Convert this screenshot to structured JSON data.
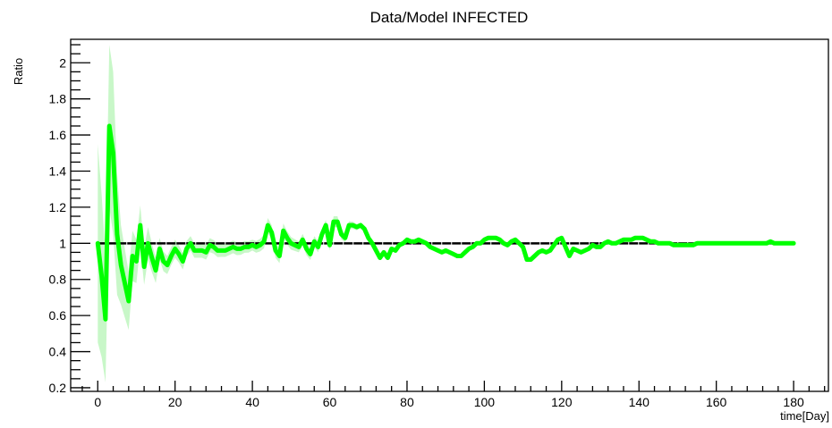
{
  "chart_data": {
    "type": "line",
    "title": "Data/Model INFECTED",
    "xlabel": "time[Day]",
    "ylabel": "Ratio",
    "xlim": [
      -7,
      189
    ],
    "ylim": [
      0.18,
      2.13
    ],
    "xticks": [
      0,
      20,
      40,
      60,
      80,
      100,
      120,
      140,
      160,
      180
    ],
    "yticks": [
      0.2,
      0.4,
      0.6,
      0.8,
      1,
      1.2,
      1.4,
      1.6,
      1.8,
      2
    ],
    "xtick_labels": [
      "0",
      "20",
      "40",
      "60",
      "80",
      "100",
      "120",
      "140",
      "160",
      "180"
    ],
    "ytick_labels": [
      "0.2",
      "0.4",
      "0.6",
      "0.8",
      "1",
      "1.2",
      "1.4",
      "1.6",
      "1.8",
      "2"
    ],
    "reference_line": {
      "y": 1,
      "x_range": [
        0,
        180
      ],
      "color": "#000000",
      "style": "dashed"
    },
    "grid": false,
    "colors": {
      "line": "#00ff00",
      "band": "#c8f7c8",
      "frame": "#000000"
    },
    "series": [
      {
        "x": [
          0,
          1,
          2,
          3,
          4,
          5,
          6,
          7,
          8,
          9,
          10,
          11,
          12,
          13,
          14,
          15,
          16,
          17,
          18,
          19,
          20,
          21,
          22,
          23,
          24,
          25,
          26,
          27,
          28,
          29,
          30,
          31,
          32,
          33,
          34,
          35,
          36,
          37,
          38,
          39,
          40,
          41,
          42,
          43,
          44,
          45,
          46,
          47,
          48,
          49,
          50,
          51,
          52,
          53,
          54,
          55,
          56,
          57,
          58,
          59,
          60,
          61,
          62,
          63,
          64,
          65,
          66,
          67,
          68,
          69,
          70,
          71,
          72,
          73,
          74,
          75,
          76,
          77,
          78,
          79,
          80,
          81,
          82,
          83,
          84,
          85,
          86,
          87,
          88,
          89,
          90,
          91,
          92,
          93,
          94,
          95,
          96,
          97,
          98,
          99,
          100,
          101,
          102,
          103,
          104,
          105,
          106,
          107,
          108,
          109,
          110,
          111,
          112,
          113,
          114,
          115,
          116,
          117,
          118,
          119,
          120,
          121,
          122,
          123,
          124,
          125,
          126,
          127,
          128,
          129,
          130,
          131,
          132,
          133,
          134,
          135,
          136,
          137,
          138,
          139,
          140,
          141,
          142,
          143,
          144,
          145,
          146,
          147,
          148,
          149,
          150,
          151,
          152,
          153,
          154,
          155,
          156,
          157,
          158,
          159,
          160,
          161,
          162,
          163,
          164,
          165,
          166,
          167,
          168,
          169,
          170,
          171,
          172,
          173,
          174,
          175,
          176,
          177,
          178,
          179,
          180
        ],
        "y": [
          1.0,
          0.82,
          0.58,
          1.65,
          1.5,
          1.05,
          0.88,
          0.78,
          0.68,
          0.93,
          0.9,
          1.1,
          0.87,
          1.0,
          0.92,
          0.85,
          0.97,
          0.9,
          0.88,
          0.93,
          0.97,
          0.94,
          0.9,
          0.97,
          1.0,
          0.96,
          0.96,
          0.96,
          0.95,
          0.99,
          0.98,
          0.96,
          0.96,
          0.96,
          0.97,
          0.98,
          0.97,
          0.97,
          0.98,
          0.98,
          0.99,
          0.98,
          0.99,
          1.01,
          1.1,
          1.06,
          0.96,
          0.93,
          1.07,
          1.03,
          1.0,
          0.99,
          0.98,
          1.02,
          0.97,
          0.94,
          1.01,
          0.98,
          1.05,
          1.1,
          0.99,
          1.12,
          1.12,
          1.05,
          1.03,
          1.1,
          1.1,
          1.09,
          1.1,
          1.08,
          1.03,
          1.0,
          0.96,
          0.92,
          0.95,
          0.92,
          0.97,
          0.96,
          0.99,
          1.0,
          1.02,
          1.01,
          1.01,
          1.02,
          1.01,
          1.0,
          0.98,
          0.97,
          0.96,
          0.95,
          0.96,
          0.95,
          0.94,
          0.93,
          0.93,
          0.95,
          0.97,
          0.98,
          1.0,
          1.0,
          1.02,
          1.03,
          1.03,
          1.03,
          1.02,
          1.0,
          0.99,
          1.01,
          1.02,
          1.0,
          0.98,
          0.91,
          0.91,
          0.93,
          0.95,
          0.96,
          0.95,
          0.96,
          0.99,
          1.02,
          1.03,
          0.98,
          0.93,
          0.97,
          0.96,
          0.95,
          0.96,
          0.97,
          0.99,
          0.98,
          0.98,
          1.0,
          1.01,
          1.0,
          1.0,
          1.01,
          1.02,
          1.02,
          1.02,
          1.03,
          1.03,
          1.03,
          1.02,
          1.01,
          1.01,
          1.0,
          1.0,
          1.0,
          1.0,
          0.99,
          0.99,
          0.99,
          0.99,
          0.99,
          0.99,
          1.0,
          1.0,
          1.0,
          1.0,
          1.0,
          1.0,
          1.0,
          1.0,
          1.0,
          1.0,
          1.0,
          1.0,
          1.0,
          1.0,
          1.0,
          1.0,
          1.0,
          1.0,
          1.0,
          1.01,
          1.0,
          1.0,
          1.0,
          1.0,
          1.0,
          1.0
        ],
        "band_x": [
          0,
          2,
          3,
          4,
          6,
          8,
          10,
          12,
          14,
          16,
          18,
          20,
          24,
          28,
          32,
          36,
          40,
          44,
          46,
          48,
          50,
          52,
          54,
          56,
          58,
          60,
          62,
          64,
          66,
          68,
          70,
          80,
          100,
          120,
          140,
          180
        ],
        "band_halfwidth": [
          0.55,
          0.35,
          0.45,
          0.45,
          0.22,
          0.16,
          0.12,
          0.1,
          0.08,
          0.06,
          0.05,
          0.05,
          0.04,
          0.04,
          0.035,
          0.035,
          0.03,
          0.04,
          0.04,
          0.04,
          0.035,
          0.03,
          0.035,
          0.03,
          0.03,
          0.03,
          0.03,
          0.025,
          0.02,
          0.015,
          0.012,
          0.01,
          0.008,
          0.006,
          0.005,
          0.004
        ]
      }
    ]
  }
}
